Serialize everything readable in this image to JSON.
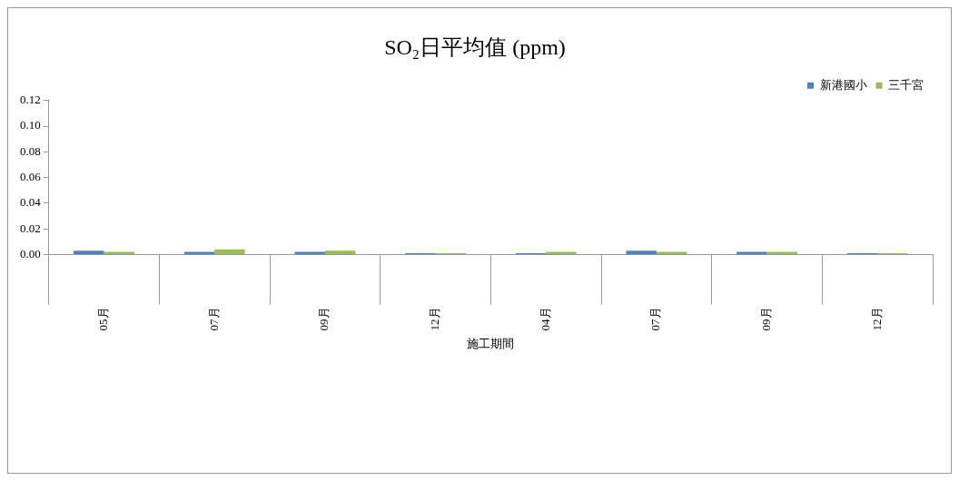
{
  "chart_data": {
    "type": "bar",
    "title": "SO₂日平均值 (ppm)",
    "xlabel": "施工期間",
    "categories": [
      "05月",
      "07月",
      "09月",
      "12月",
      "04月",
      "07月",
      "09月",
      "12月"
    ],
    "series": [
      {
        "name": "新港國小",
        "color": "#4f81bd",
        "values": [
          0.003,
          0.002,
          0.002,
          0.001,
          0.001,
          0.003,
          0.002,
          0.001
        ]
      },
      {
        "name": "三千宮",
        "color": "#9bbb59",
        "values": [
          0.002,
          0.004,
          0.003,
          0.001,
          0.002,
          0.002,
          0.002,
          0.001
        ]
      }
    ],
    "ylim": [
      0,
      0.12
    ],
    "yticks": [
      {
        "value": 0,
        "label": "0.00"
      },
      {
        "value": 0.02,
        "label": "0.02"
      },
      {
        "value": 0.04,
        "label": "0.04"
      },
      {
        "value": 0.06,
        "label": "0.06"
      },
      {
        "value": 0.08,
        "label": "0.08"
      },
      {
        "value": 0.1,
        "label": "0.10"
      },
      {
        "value": 0.12,
        "label": "0.12"
      }
    ],
    "grid": false,
    "legend": "top right"
  }
}
